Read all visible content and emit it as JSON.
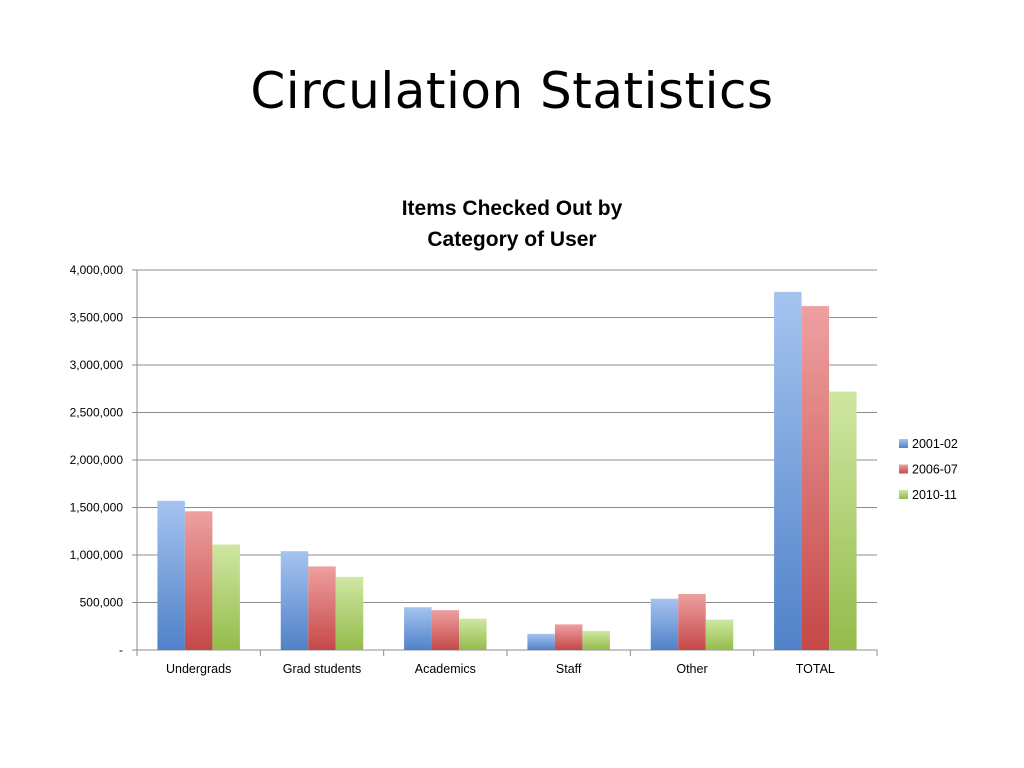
{
  "slide": {
    "title": "Circulation Statistics"
  },
  "colors": {
    "2001-02": "#5b93e3",
    "2006-07": "#e05252",
    "2010-11": "#a8d455",
    "gridline": "#8c8c8c",
    "axis": "#8c8c8c"
  },
  "chart_data": {
    "type": "bar",
    "title_lines": [
      "Items Checked Out by",
      "Category of User"
    ],
    "xlabel": "",
    "ylabel": "",
    "categories": [
      "Undergrads",
      "Grad students",
      "Academics",
      "Staff",
      "Other",
      "TOTAL"
    ],
    "series": [
      {
        "name": "2001-02",
        "values": [
          1570000,
          1040000,
          450000,
          170000,
          540000,
          3770000
        ]
      },
      {
        "name": "2006-07",
        "values": [
          1460000,
          880000,
          420000,
          270000,
          590000,
          3620000
        ]
      },
      {
        "name": "2010-11",
        "values": [
          1110000,
          770000,
          330000,
          200000,
          320000,
          2720000
        ]
      }
    ],
    "ylim": [
      0,
      4000000
    ],
    "yticks": [
      0,
      500000,
      1000000,
      1500000,
      2000000,
      2500000,
      3000000,
      3500000,
      4000000
    ],
    "ytick_labels": [
      "-",
      "500,000",
      "1,000,000",
      "1,500,000",
      "2,000,000",
      "2,500,000",
      "3,000,000",
      "3,500,000",
      "4,000,000"
    ],
    "grid": true,
    "legend_position": "right"
  }
}
